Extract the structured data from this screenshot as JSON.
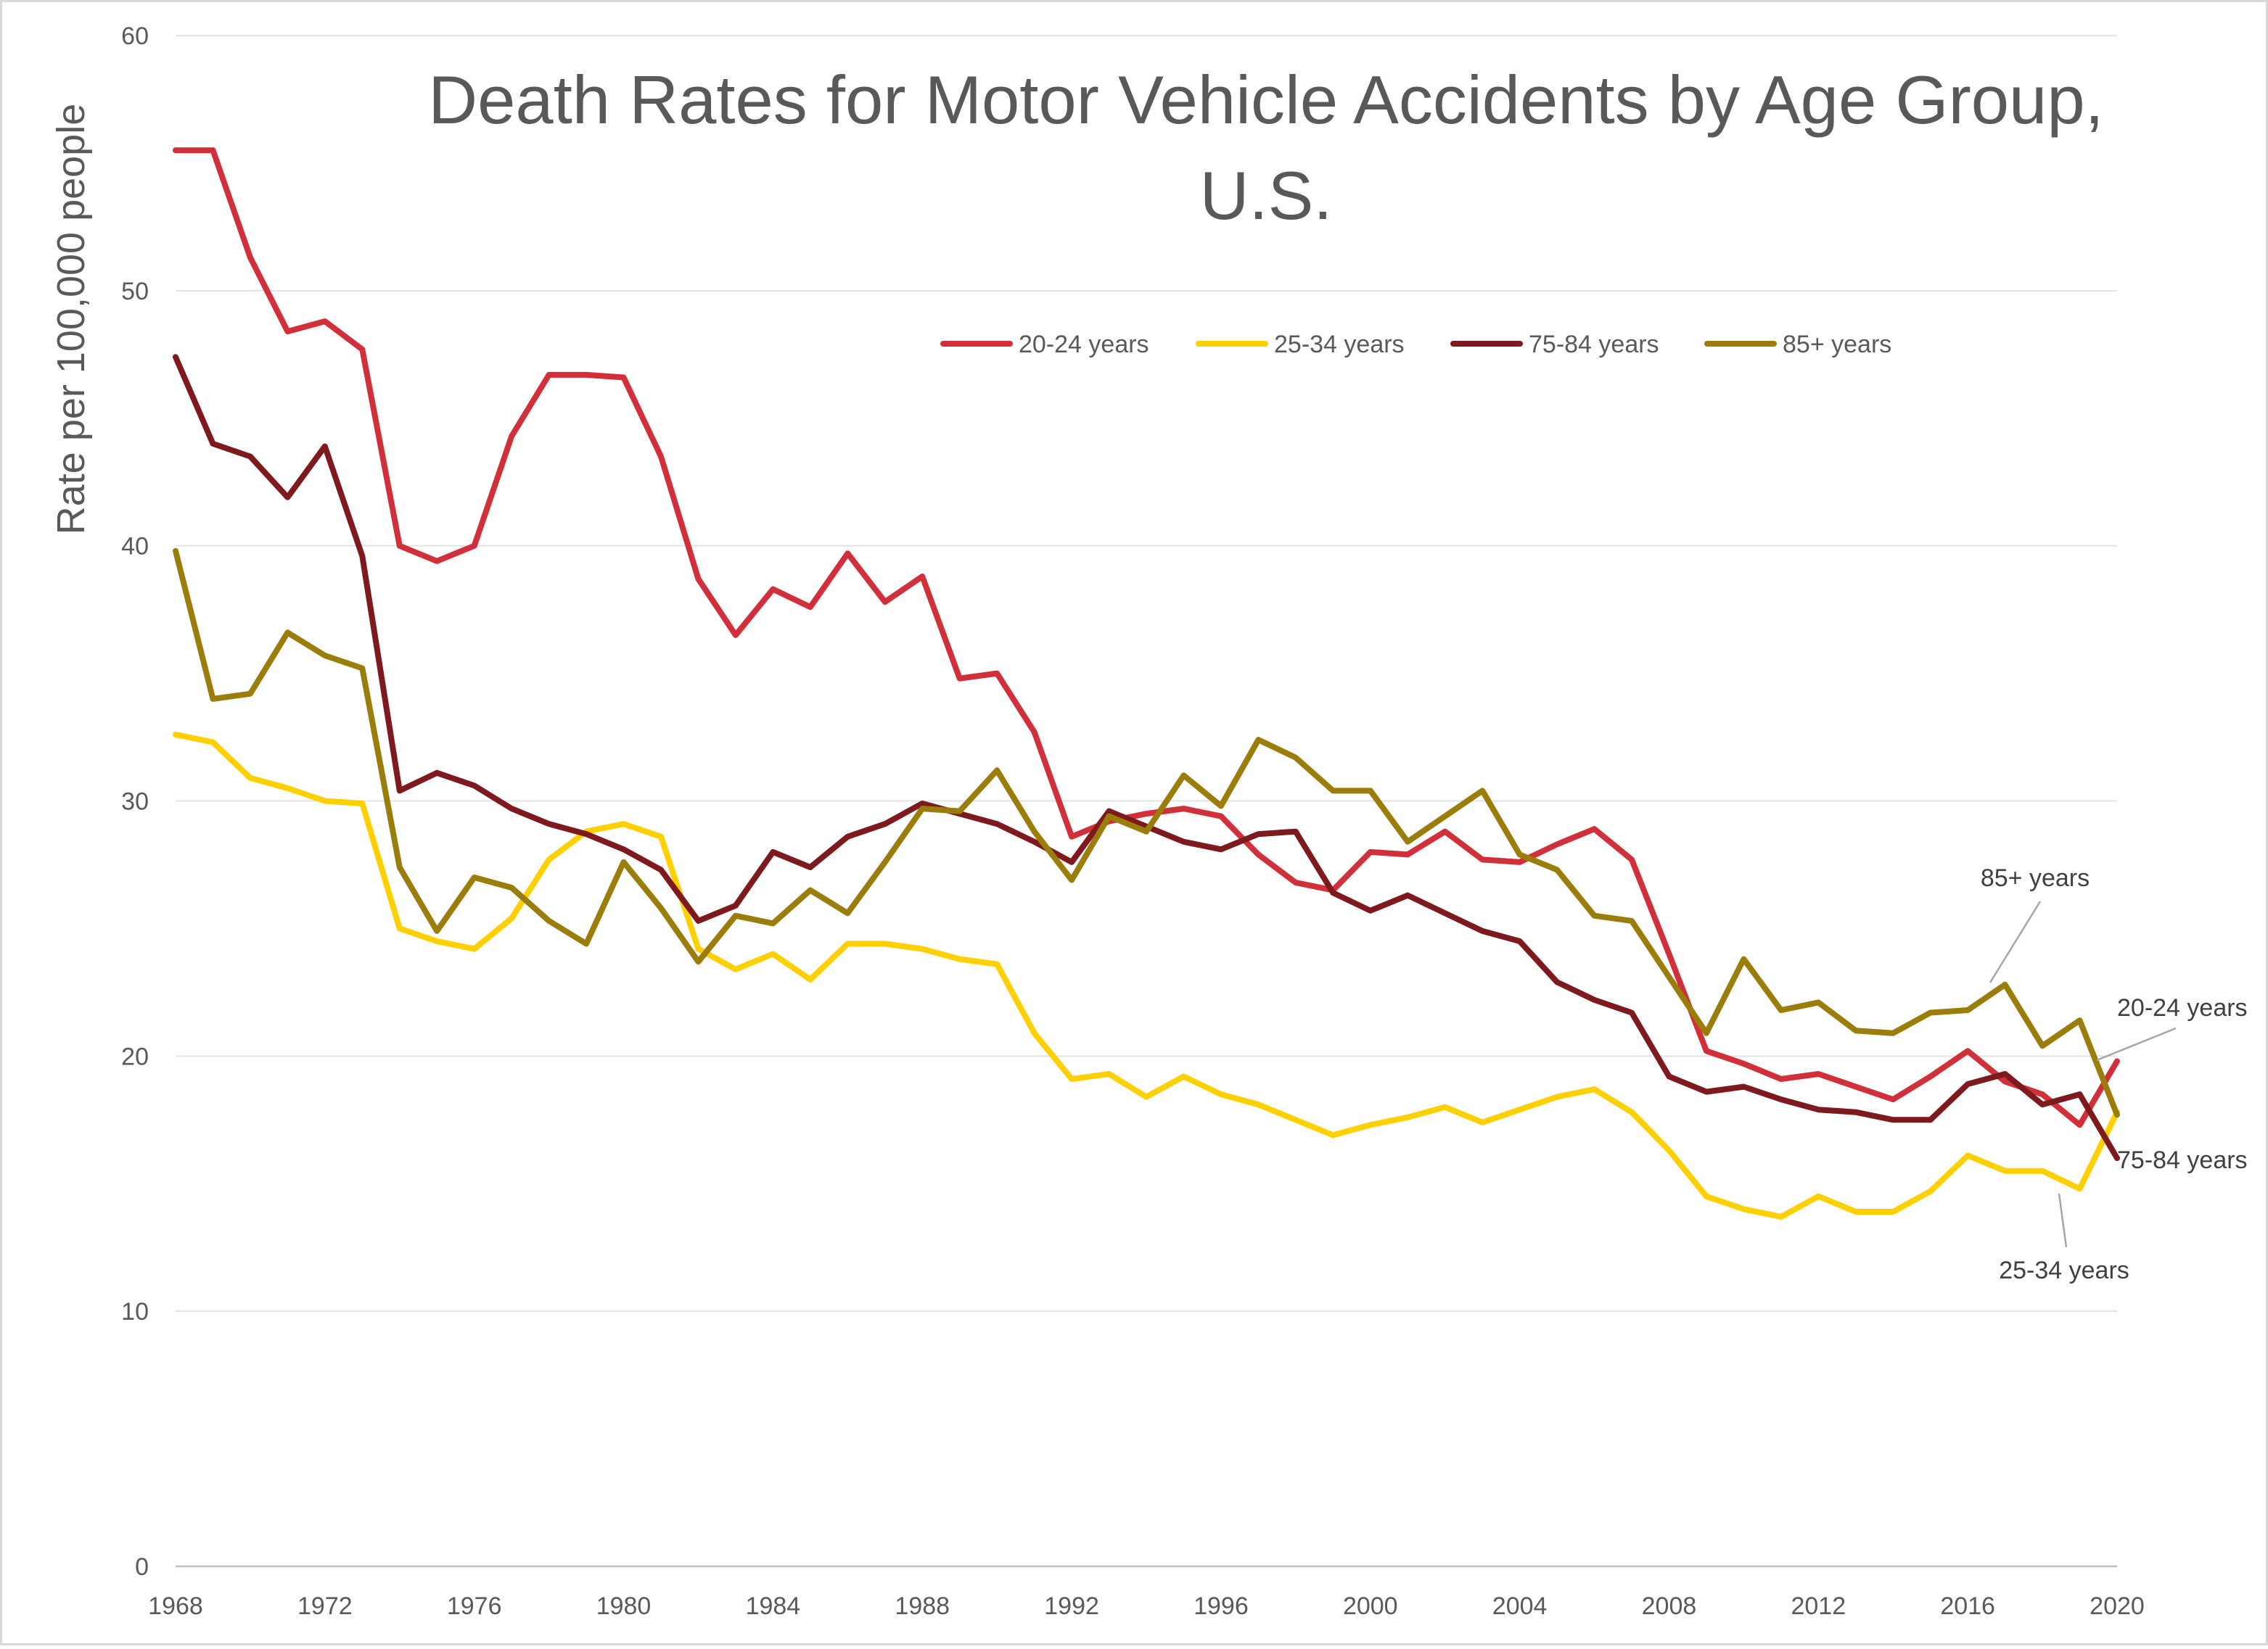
{
  "chart_data": {
    "type": "line",
    "title": "Death Rates for Motor Vehicle Accidents by Age Group, U.S.",
    "title_lines": [
      "Death Rates for Motor Vehicle Accidents by Age Group,",
      "U.S."
    ],
    "xlabel": "",
    "ylabel": "Rate per 100,000 people",
    "xlim": [
      1968,
      2020
    ],
    "ylim": [
      0,
      60
    ],
    "x_ticks": [
      1968,
      1972,
      1976,
      1980,
      1984,
      1988,
      1992,
      1996,
      2000,
      2004,
      2008,
      2012,
      2016,
      2020
    ],
    "y_ticks": [
      0,
      10,
      20,
      30,
      40,
      50,
      60
    ],
    "grid": "horizontal",
    "legend_position": "top-right",
    "x": [
      1968,
      1969,
      1970,
      1971,
      1972,
      1973,
      1974,
      1975,
      1976,
      1977,
      1978,
      1979,
      1980,
      1981,
      1982,
      1983,
      1984,
      1985,
      1986,
      1987,
      1988,
      1989,
      1990,
      1991,
      1992,
      1993,
      1994,
      1995,
      1996,
      1997,
      1998,
      1999,
      2000,
      2001,
      2002,
      2003,
      2004,
      2005,
      2006,
      2007,
      2008,
      2009,
      2010,
      2011,
      2012,
      2013,
      2014,
      2015,
      2016,
      2017,
      2018,
      2019,
      2020
    ],
    "series": [
      {
        "name": "20-24 years",
        "color": "#D1303B",
        "values": [
          55.5,
          55.5,
          51.3,
          48.4,
          48.8,
          47.7,
          40.0,
          39.4,
          40.0,
          44.3,
          46.7,
          46.7,
          46.6,
          43.5,
          38.7,
          36.5,
          38.3,
          37.6,
          39.7,
          37.8,
          38.8,
          34.8,
          35.0,
          32.7,
          28.6,
          29.2,
          29.5,
          29.7,
          29.4,
          27.9,
          26.8,
          26.5,
          28.0,
          27.9,
          28.8,
          27.7,
          27.6,
          28.3,
          28.9,
          27.7,
          24.0,
          20.2,
          19.7,
          19.1,
          19.3,
          18.8,
          18.3,
          19.2,
          20.2,
          19.0,
          18.5,
          17.3,
          19.8
        ]
      },
      {
        "name": "25-34 years",
        "color": "#FFD000",
        "values": [
          32.6,
          32.3,
          30.9,
          30.5,
          30.0,
          29.9,
          25.0,
          24.5,
          24.2,
          25.4,
          27.7,
          28.8,
          29.1,
          28.6,
          24.2,
          23.4,
          24.0,
          23.0,
          24.4,
          24.4,
          24.2,
          23.8,
          23.6,
          20.9,
          19.1,
          19.3,
          18.4,
          19.2,
          18.5,
          18.1,
          17.5,
          16.9,
          17.3,
          17.6,
          18.0,
          17.4,
          17.9,
          18.4,
          18.7,
          17.8,
          16.3,
          14.5,
          14.0,
          13.7,
          14.5,
          13.9,
          13.9,
          14.7,
          16.1,
          15.5,
          15.5,
          14.8,
          17.8
        ]
      },
      {
        "name": "75-84 years",
        "color": "#7E1A1E",
        "values": [
          47.4,
          44.0,
          43.5,
          41.9,
          43.9,
          39.6,
          30.4,
          31.1,
          30.6,
          29.7,
          29.1,
          28.7,
          28.1,
          27.3,
          25.3,
          25.9,
          28.0,
          27.4,
          28.6,
          29.1,
          29.9,
          29.5,
          29.1,
          28.4,
          27.6,
          29.6,
          29.0,
          28.4,
          28.1,
          28.7,
          28.8,
          26.4,
          25.7,
          26.3,
          25.6,
          24.9,
          24.5,
          22.9,
          22.2,
          21.7,
          19.2,
          18.6,
          18.8,
          18.3,
          17.9,
          17.8,
          17.5,
          17.5,
          18.9,
          19.3,
          18.1,
          18.5,
          16.0
        ]
      },
      {
        "name": "85+ years",
        "color": "#9A7D0A",
        "values": [
          39.8,
          34.0,
          34.2,
          36.6,
          35.7,
          35.2,
          27.4,
          24.9,
          27.0,
          26.6,
          25.3,
          24.4,
          27.6,
          25.8,
          23.7,
          25.5,
          25.2,
          26.5,
          25.6,
          27.6,
          29.7,
          29.6,
          31.2,
          28.8,
          26.9,
          29.4,
          28.8,
          31.0,
          29.8,
          32.4,
          31.7,
          30.4,
          30.4,
          28.4,
          29.4,
          30.4,
          27.9,
          27.3,
          25.5,
          25.3,
          23.1,
          20.9,
          23.8,
          21.8,
          22.1,
          21.0,
          20.9,
          21.7,
          21.8,
          22.8,
          20.4,
          21.4,
          17.7
        ]
      }
    ],
    "annotations": [
      {
        "text": "85+ years"
      },
      {
        "text": "20-24 years"
      },
      {
        "text": "75-84 years"
      },
      {
        "text": "25-34 years"
      }
    ]
  }
}
